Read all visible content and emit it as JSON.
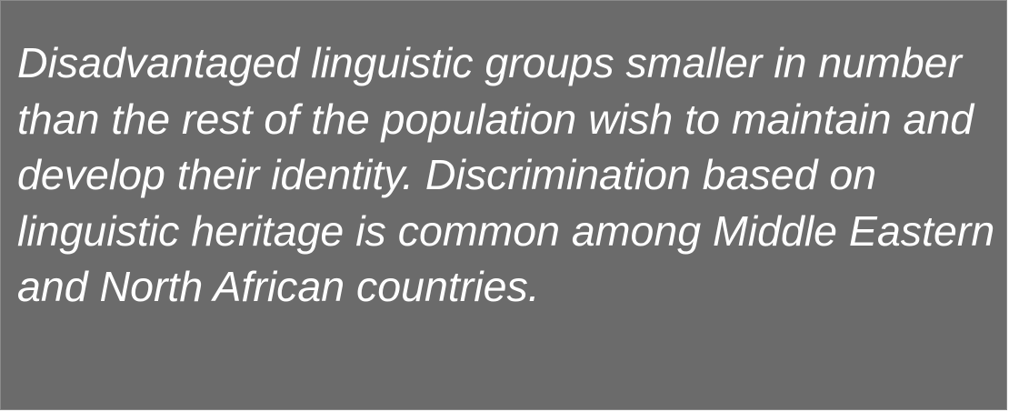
{
  "text_block": {
    "lines": [
      "Disadvantaged linguistic groups smaller in number",
      "than the rest of the population wish to maintain and",
      "develop their identity. Discrimination based on",
      "linguistic heritage is common among Middle Eastern",
      "and North African countries."
    ]
  },
  "colors": {
    "panel_background": "#6b6b6b",
    "text": "#ffffff"
  }
}
